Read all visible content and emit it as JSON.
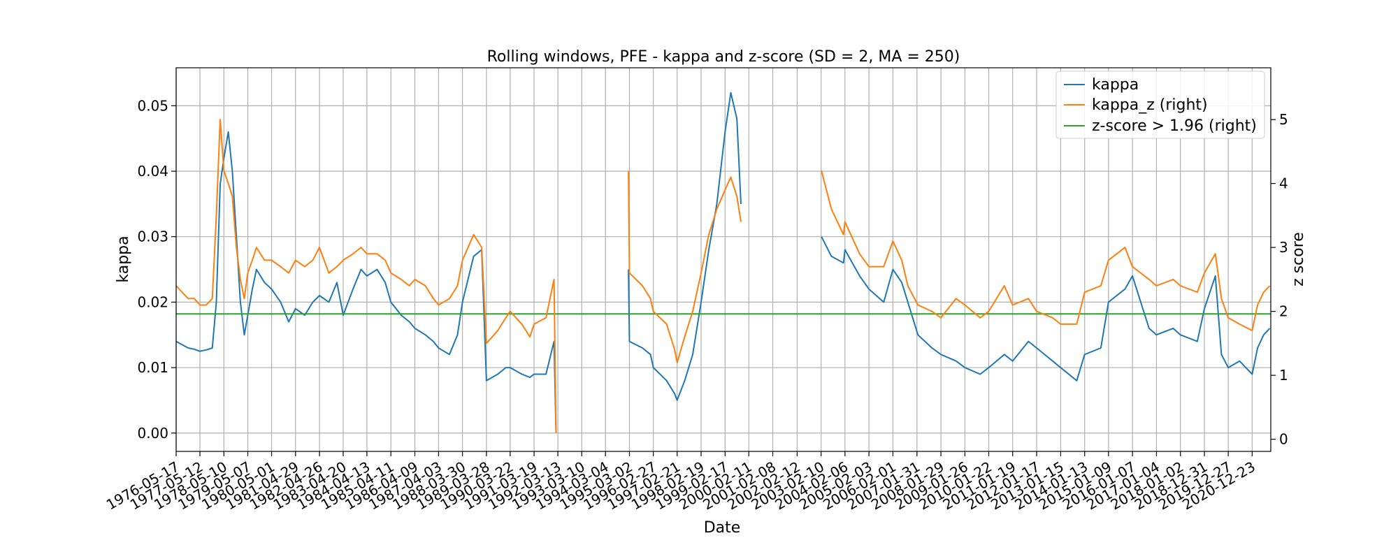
{
  "chart_data": {
    "type": "line",
    "title": "Rolling windows, PFE - kappa and z-score (SD = 2, MA = 250)",
    "xlabel": "Date",
    "ylabel": "kappa",
    "y2label": "z score",
    "grid": true,
    "legend_position": "top-right",
    "xlim": [
      "1976-05-17",
      "2021-10-01"
    ],
    "ylim": [
      -0.0028,
      0.0558
    ],
    "y2lim": [
      -0.19,
      5.81
    ],
    "x_ticks": [
      "1976-05-17",
      "1977-05-12",
      "1978-05-10",
      "1979-05-07",
      "1980-05-01",
      "1981-04-29",
      "1982-04-26",
      "1983-04-20",
      "1984-04-13",
      "1985-04-11",
      "1986-04-09",
      "1987-04-03",
      "1988-03-30",
      "1989-03-28",
      "1990-03-22",
      "1991-03-19",
      "1992-03-13",
      "1993-03-10",
      "1994-03-04",
      "1995-03-02",
      "1996-02-27",
      "1997-02-21",
      "1998-02-19",
      "1999-02-17",
      "2000-02-11",
      "2001-02-08",
      "2002-02-12",
      "2003-02-10",
      "2004-02-06",
      "2005-02-03",
      "2006-02-01",
      "2007-01-31",
      "2008-01-29",
      "2009-01-26",
      "2010-01-22",
      "2011-01-19",
      "2012-01-17",
      "2013-01-15",
      "2014-01-13",
      "2015-01-09",
      "2016-01-07",
      "2017-01-04",
      "2018-01-02",
      "2018-12-31",
      "2019-12-27",
      "2020-12-23"
    ],
    "y_ticks": [
      "0.00",
      "0.01",
      "0.02",
      "0.03",
      "0.04",
      "0.05"
    ],
    "y2_ticks": [
      "0",
      "1",
      "2",
      "3",
      "4",
      "5"
    ],
    "series": [
      {
        "name": "kappa",
        "axis": "left",
        "color": "#1f77b4",
        "points": [
          [
            "1976-05-17",
            0.014
          ],
          [
            "1976-08-15",
            0.0135
          ],
          [
            "1976-11-15",
            0.013
          ],
          [
            "1977-02-15",
            0.0128
          ],
          [
            "1977-05-12",
            0.0125
          ],
          [
            "1977-08-15",
            0.0127
          ],
          [
            "1977-11-15",
            0.013
          ],
          [
            "1978-01-15",
            0.02
          ],
          [
            "1978-03-15",
            0.038
          ],
          [
            "1978-05-10",
            0.042
          ],
          [
            "1978-07-15",
            0.046
          ],
          [
            "1978-09-15",
            0.04
          ],
          [
            "1978-11-15",
            0.03
          ],
          [
            "1979-01-15",
            0.02
          ],
          [
            "1979-03-15",
            0.015
          ],
          [
            "1979-05-07",
            0.018
          ],
          [
            "1979-07-15",
            0.022
          ],
          [
            "1979-09-15",
            0.025
          ],
          [
            "1980-01-15",
            0.023
          ],
          [
            "1980-05-01",
            0.022
          ],
          [
            "1980-09-15",
            0.02
          ],
          [
            "1981-01-15",
            0.017
          ],
          [
            "1981-04-29",
            0.019
          ],
          [
            "1981-09-15",
            0.018
          ],
          [
            "1982-01-15",
            0.02
          ],
          [
            "1982-04-26",
            0.021
          ],
          [
            "1982-09-15",
            0.02
          ],
          [
            "1983-01-15",
            0.023
          ],
          [
            "1983-04-20",
            0.018
          ],
          [
            "1983-09-15",
            0.022
          ],
          [
            "1984-01-15",
            0.025
          ],
          [
            "1984-04-13",
            0.024
          ],
          [
            "1984-09-15",
            0.025
          ],
          [
            "1985-01-15",
            0.023
          ],
          [
            "1985-04-11",
            0.02
          ],
          [
            "1985-09-15",
            0.018
          ],
          [
            "1986-01-15",
            0.017
          ],
          [
            "1986-04-09",
            0.016
          ],
          [
            "1986-09-15",
            0.015
          ],
          [
            "1987-01-15",
            0.014
          ],
          [
            "1987-04-03",
            0.013
          ],
          [
            "1987-09-15",
            0.012
          ],
          [
            "1988-01-15",
            0.015
          ],
          [
            "1988-03-30",
            0.02
          ],
          [
            "1988-09-15",
            0.027
          ],
          [
            "1989-01-15",
            0.028
          ],
          [
            "1989-03-28",
            0.008
          ],
          [
            "1989-09-15",
            0.009
          ],
          [
            "1990-01-15",
            0.01
          ],
          [
            "1990-03-22",
            0.01
          ],
          [
            "1990-09-15",
            0.009
          ],
          [
            "1991-01-15",
            0.0085
          ],
          [
            "1991-03-19",
            0.009
          ],
          [
            "1991-09-15",
            0.009
          ],
          [
            "1992-01-15",
            0.014
          ],
          [
            "1992-02-15",
            0.0
          ],
          null,
          [
            "1995-02-15",
            0.025
          ],
          [
            "1995-03-02",
            0.014
          ],
          [
            "1995-09-15",
            0.013
          ],
          [
            "1996-01-15",
            0.012
          ],
          [
            "1996-02-27",
            0.01
          ],
          [
            "1996-09-15",
            0.008
          ],
          [
            "1997-01-15",
            0.006
          ],
          [
            "1997-02-21",
            0.005
          ],
          [
            "1997-06-15",
            0.008
          ],
          [
            "1997-10-15",
            0.012
          ],
          [
            "1998-02-19",
            0.02
          ],
          [
            "1998-06-15",
            0.028
          ],
          [
            "1998-10-15",
            0.035
          ],
          [
            "1999-02-17",
            0.046
          ],
          [
            "1999-05-15",
            0.052
          ],
          [
            "1999-08-15",
            0.048
          ],
          [
            "1999-10-15",
            0.035
          ],
          null,
          [
            "2003-02-15",
            0.03
          ],
          [
            "2003-07-15",
            0.027
          ],
          [
            "2004-01-15",
            0.026
          ],
          [
            "2004-02-06",
            0.028
          ],
          [
            "2004-09-15",
            0.024
          ],
          [
            "2005-02-03",
            0.022
          ],
          [
            "2005-09-15",
            0.02
          ],
          [
            "2006-02-01",
            0.025
          ],
          [
            "2006-06-15",
            0.023
          ],
          [
            "2006-09-15",
            0.02
          ],
          [
            "2007-02-15",
            0.015
          ],
          [
            "2007-09-15",
            0.013
          ],
          [
            "2008-01-29",
            0.012
          ],
          [
            "2008-09-15",
            0.011
          ],
          [
            "2009-01-26",
            0.01
          ],
          [
            "2009-09-15",
            0.009
          ],
          [
            "2010-01-22",
            0.01
          ],
          [
            "2010-09-15",
            0.012
          ],
          [
            "2011-01-19",
            0.011
          ],
          [
            "2011-09-15",
            0.014
          ],
          [
            "2012-01-17",
            0.013
          ],
          [
            "2012-09-15",
            0.011
          ],
          [
            "2013-01-15",
            0.01
          ],
          [
            "2013-09-15",
            0.008
          ],
          [
            "2014-01-13",
            0.012
          ],
          [
            "2014-09-15",
            0.013
          ],
          [
            "2015-01-09",
            0.02
          ],
          [
            "2015-09-15",
            0.022
          ],
          [
            "2016-01-07",
            0.024
          ],
          [
            "2016-09-15",
            0.016
          ],
          [
            "2017-01-04",
            0.015
          ],
          [
            "2017-09-15",
            0.016
          ],
          [
            "2018-01-02",
            0.015
          ],
          [
            "2018-09-15",
            0.014
          ],
          [
            "2018-12-31",
            0.019
          ],
          [
            "2019-06-15",
            0.024
          ],
          [
            "2019-09-15",
            0.012
          ],
          [
            "2019-12-27",
            0.01
          ],
          [
            "2020-06-15",
            0.011
          ],
          [
            "2020-12-23",
            0.009
          ],
          [
            "2021-03-15",
            0.013
          ],
          [
            "2021-06-15",
            0.015
          ],
          [
            "2021-09-15",
            0.016
          ]
        ]
      },
      {
        "name": "kappa_z (right)",
        "axis": "right",
        "color": "#ff7f0e",
        "points": [
          [
            "1976-05-17",
            2.4
          ],
          [
            "1976-08-15",
            2.3
          ],
          [
            "1976-11-15",
            2.2
          ],
          [
            "1977-02-15",
            2.2
          ],
          [
            "1977-05-12",
            2.1
          ],
          [
            "1977-08-15",
            2.1
          ],
          [
            "1977-11-15",
            2.2
          ],
          [
            "1978-01-15",
            3.5
          ],
          [
            "1978-03-15",
            5.0
          ],
          [
            "1978-05-10",
            4.2
          ],
          [
            "1978-07-15",
            4.0
          ],
          [
            "1978-09-15",
            3.8
          ],
          [
            "1978-11-15",
            3.0
          ],
          [
            "1979-01-15",
            2.5
          ],
          [
            "1979-03-15",
            2.2
          ],
          [
            "1979-05-07",
            2.6
          ],
          [
            "1979-07-15",
            2.8
          ],
          [
            "1979-09-15",
            3.0
          ],
          [
            "1980-01-15",
            2.8
          ],
          [
            "1980-05-01",
            2.8
          ],
          [
            "1980-09-15",
            2.7
          ],
          [
            "1981-01-15",
            2.6
          ],
          [
            "1981-04-29",
            2.8
          ],
          [
            "1981-09-15",
            2.7
          ],
          [
            "1982-01-15",
            2.8
          ],
          [
            "1982-04-26",
            3.0
          ],
          [
            "1982-09-15",
            2.6
          ],
          [
            "1983-01-15",
            2.7
          ],
          [
            "1983-04-20",
            2.8
          ],
          [
            "1983-09-15",
            2.9
          ],
          [
            "1984-01-15",
            3.0
          ],
          [
            "1984-04-13",
            2.9
          ],
          [
            "1984-09-15",
            2.9
          ],
          [
            "1985-01-15",
            2.8
          ],
          [
            "1985-04-11",
            2.6
          ],
          [
            "1985-09-15",
            2.5
          ],
          [
            "1986-01-15",
            2.4
          ],
          [
            "1986-04-09",
            2.5
          ],
          [
            "1986-09-15",
            2.4
          ],
          [
            "1987-01-15",
            2.2
          ],
          [
            "1987-04-03",
            2.1
          ],
          [
            "1987-09-15",
            2.2
          ],
          [
            "1988-01-15",
            2.4
          ],
          [
            "1988-03-30",
            2.8
          ],
          [
            "1988-09-15",
            3.2
          ],
          [
            "1989-01-15",
            3.0
          ],
          [
            "1989-03-28",
            1.5
          ],
          [
            "1989-09-15",
            1.7
          ],
          [
            "1990-01-15",
            1.9
          ],
          [
            "1990-03-22",
            2.0
          ],
          [
            "1990-09-15",
            1.8
          ],
          [
            "1991-01-15",
            1.6
          ],
          [
            "1991-03-19",
            1.8
          ],
          [
            "1991-09-15",
            1.9
          ],
          [
            "1992-01-15",
            2.5
          ],
          [
            "1992-02-15",
            0.1
          ],
          null,
          [
            "1995-02-15",
            4.2
          ],
          [
            "1995-03-02",
            2.6
          ],
          [
            "1995-09-15",
            2.4
          ],
          [
            "1996-01-15",
            2.2
          ],
          [
            "1996-02-27",
            2.0
          ],
          [
            "1996-09-15",
            1.8
          ],
          [
            "1997-01-15",
            1.4
          ],
          [
            "1997-02-21",
            1.2
          ],
          [
            "1997-06-15",
            1.6
          ],
          [
            "1997-10-15",
            2.0
          ],
          [
            "1998-02-19",
            2.6
          ],
          [
            "1998-06-15",
            3.2
          ],
          [
            "1998-10-15",
            3.6
          ],
          [
            "1999-02-17",
            3.9
          ],
          [
            "1999-05-15",
            4.1
          ],
          [
            "1999-08-15",
            3.8
          ],
          [
            "1999-10-15",
            3.4
          ],
          null,
          [
            "2003-02-15",
            4.2
          ],
          [
            "2003-07-15",
            3.6
          ],
          [
            "2004-01-15",
            3.2
          ],
          [
            "2004-02-06",
            3.4
          ],
          [
            "2004-09-15",
            2.9
          ],
          [
            "2005-02-03",
            2.7
          ],
          [
            "2005-09-15",
            2.7
          ],
          [
            "2006-02-01",
            3.1
          ],
          [
            "2006-06-15",
            2.8
          ],
          [
            "2006-09-15",
            2.4
          ],
          [
            "2007-02-15",
            2.1
          ],
          [
            "2007-09-15",
            2.0
          ],
          [
            "2008-01-29",
            1.9
          ],
          [
            "2008-09-15",
            2.2
          ],
          [
            "2009-01-26",
            2.1
          ],
          [
            "2009-09-15",
            1.9
          ],
          [
            "2010-01-22",
            2.0
          ],
          [
            "2010-09-15",
            2.4
          ],
          [
            "2011-01-19",
            2.1
          ],
          [
            "2011-09-15",
            2.2
          ],
          [
            "2012-01-17",
            2.0
          ],
          [
            "2012-09-15",
            1.9
          ],
          [
            "2013-01-15",
            1.8
          ],
          [
            "2013-09-15",
            1.8
          ],
          [
            "2014-01-13",
            2.3
          ],
          [
            "2014-09-15",
            2.4
          ],
          [
            "2015-01-09",
            2.8
          ],
          [
            "2015-09-15",
            3.0
          ],
          [
            "2016-01-07",
            2.7
          ],
          [
            "2016-09-15",
            2.5
          ],
          [
            "2017-01-04",
            2.4
          ],
          [
            "2017-09-15",
            2.5
          ],
          [
            "2018-01-02",
            2.4
          ],
          [
            "2018-09-15",
            2.3
          ],
          [
            "2018-12-31",
            2.6
          ],
          [
            "2019-06-15",
            2.9
          ],
          [
            "2019-09-15",
            2.2
          ],
          [
            "2019-12-27",
            1.9
          ],
          [
            "2020-06-15",
            1.8
          ],
          [
            "2020-12-23",
            1.7
          ],
          [
            "2021-03-15",
            2.1
          ],
          [
            "2021-06-15",
            2.3
          ],
          [
            "2021-09-15",
            2.4
          ]
        ]
      },
      {
        "name": "z-score > 1.96 (right)",
        "axis": "right",
        "color": "#2ca02c",
        "points": [
          [
            "1976-05-17",
            1.96
          ],
          [
            "2021-10-01",
            1.96
          ]
        ]
      }
    ]
  }
}
